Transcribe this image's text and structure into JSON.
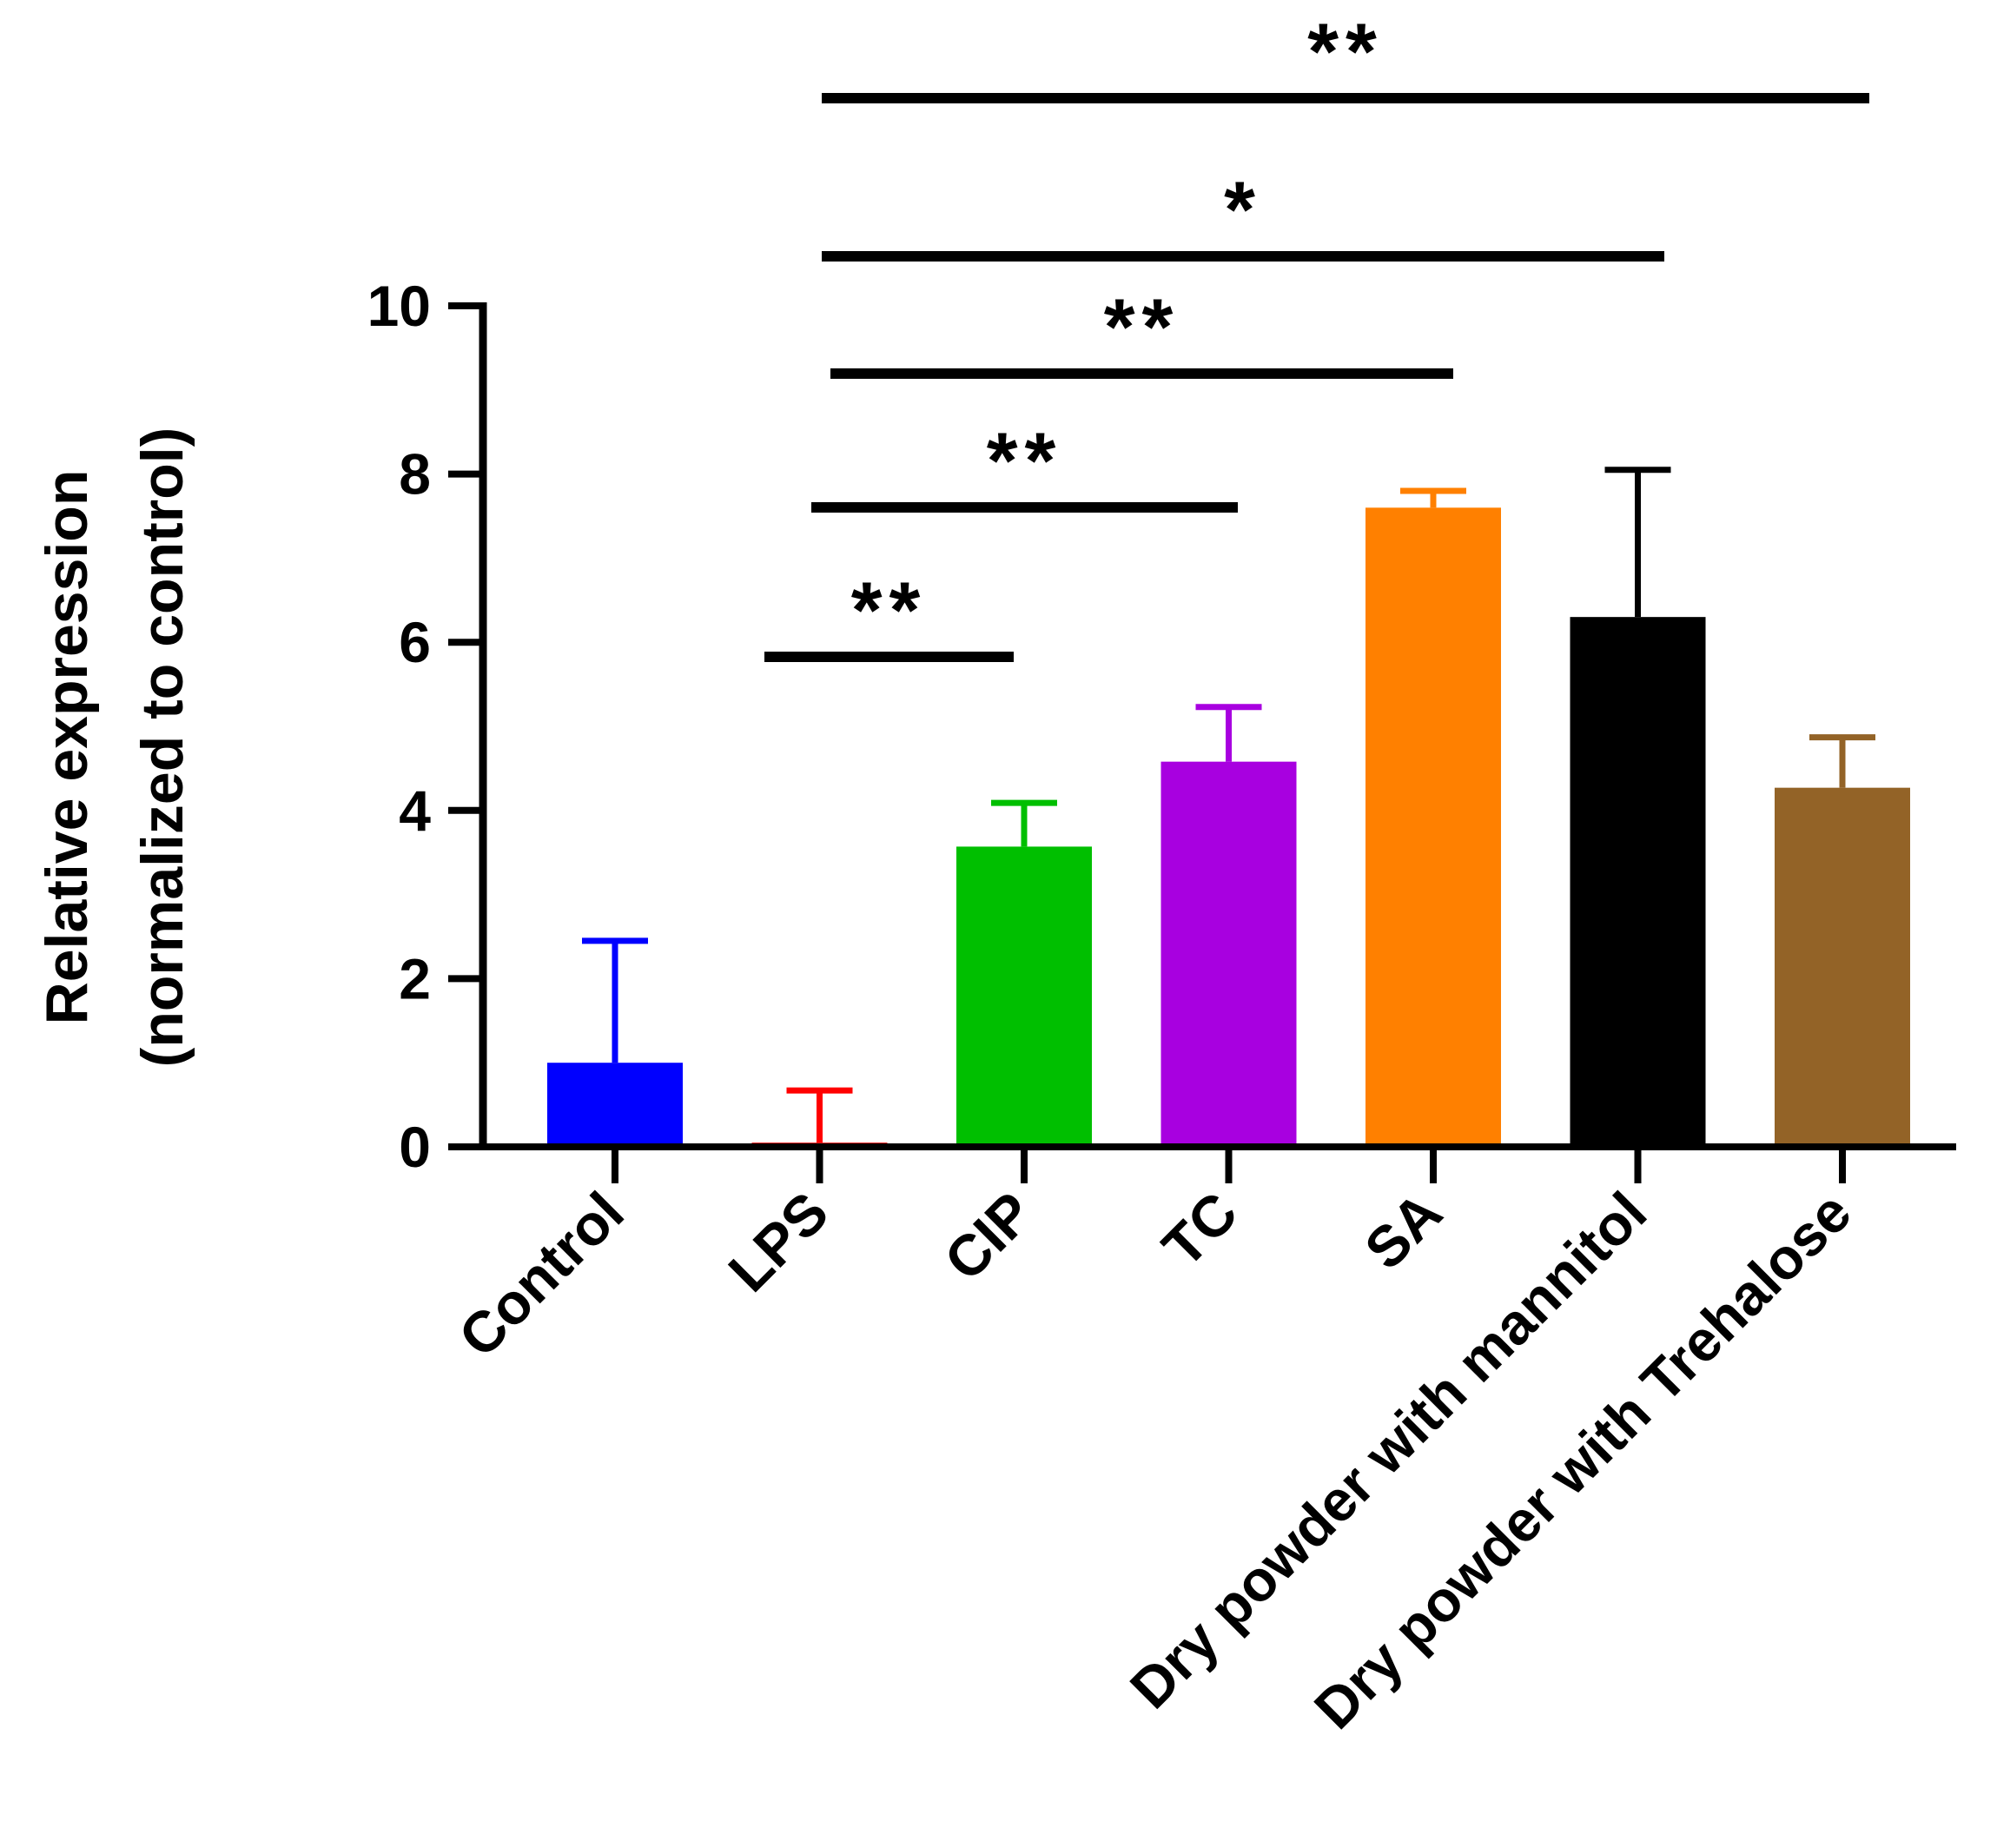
{
  "chart_data": {
    "type": "bar",
    "categories": [
      "Control",
      "LPS",
      "CIP",
      "TC",
      "SA",
      "Dry powder with mannitol",
      "Dry powder with Trehalose"
    ],
    "values": [
      1.0,
      0.05,
      3.57,
      4.58,
      7.6,
      6.3,
      4.27
    ],
    "errors": [
      1.45,
      0.62,
      0.52,
      0.65,
      0.2,
      1.75,
      0.6
    ],
    "colors": [
      "#0000ff",
      "#ff0000",
      "#00bf00",
      "#a800e0",
      "#ff8000",
      "#000000",
      "#936327"
    ],
    "ylabel_line1": "Relative expression",
    "ylabel_line2": "(normalized to control)",
    "ylim": [
      0,
      10
    ],
    "yticks": [
      "0",
      "2",
      "4",
      "6",
      "8",
      "10"
    ],
    "grid": false,
    "legend": "none",
    "significance": [
      {
        "from": "LPS",
        "to": "CIP",
        "label": "**"
      },
      {
        "from": "LPS",
        "to": "TC",
        "label": "**"
      },
      {
        "from": "LPS",
        "to": "SA",
        "label": "**"
      },
      {
        "from": "LPS",
        "to": "Dry powder with mannitol",
        "label": "*"
      },
      {
        "from": "LPS",
        "to": "Dry powder with Trehalose",
        "label": "**"
      }
    ]
  }
}
